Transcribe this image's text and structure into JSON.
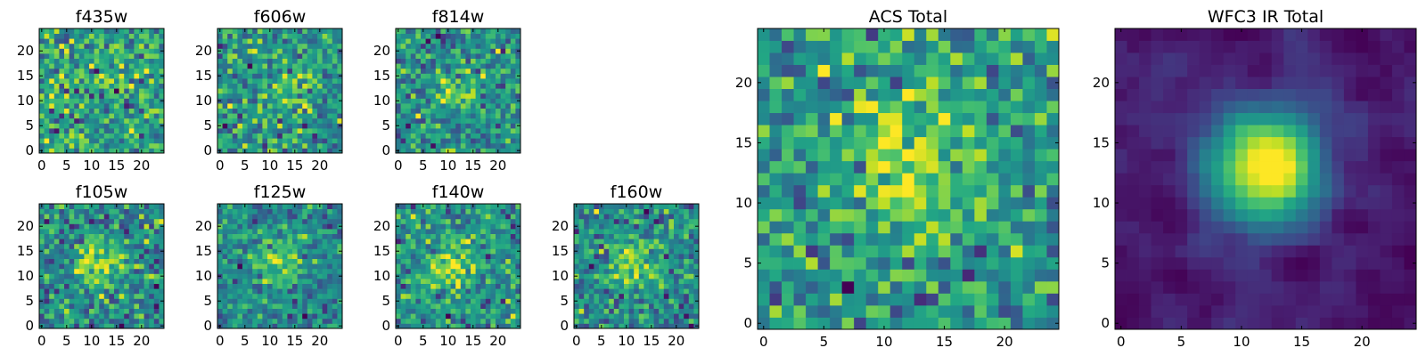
{
  "chart_data": [
    {
      "type": "heatmap",
      "title": "f435w",
      "colormap": "viridis",
      "grid": false,
      "rows": 25,
      "cols": 25,
      "xlim": [
        -0.5,
        24.5
      ],
      "ylim": [
        -0.5,
        24.5
      ],
      "xticks": [
        0,
        5,
        10,
        15,
        20
      ],
      "yticks": [
        0,
        5,
        10,
        15,
        20
      ],
      "peak": [
        10,
        10
      ],
      "signal": 0.15,
      "noise": 1.0
    },
    {
      "type": "heatmap",
      "title": "f606w",
      "colormap": "viridis",
      "grid": false,
      "rows": 25,
      "cols": 25,
      "xlim": [
        -0.5,
        24.5
      ],
      "ylim": [
        -0.5,
        24.5
      ],
      "xticks": [
        0,
        5,
        10,
        15,
        20
      ],
      "yticks": [
        0,
        5,
        10,
        15,
        20
      ],
      "peak": [
        13,
        13
      ],
      "signal": 0.35,
      "noise": 1.0
    },
    {
      "type": "heatmap",
      "title": "f814w",
      "colormap": "viridis",
      "grid": false,
      "rows": 25,
      "cols": 25,
      "xlim": [
        -0.5,
        24.5
      ],
      "ylim": [
        -0.5,
        24.5
      ],
      "xticks": [
        0,
        5,
        10,
        15,
        20
      ],
      "yticks": [
        0,
        5,
        10,
        15,
        20
      ],
      "peak": [
        12,
        12
      ],
      "signal": 0.6,
      "noise": 1.0
    },
    {
      "type": "heatmap",
      "title": "f105w",
      "colormap": "viridis",
      "grid": false,
      "rows": 25,
      "cols": 25,
      "xlim": [
        -0.5,
        24.5
      ],
      "ylim": [
        -0.5,
        24.5
      ],
      "xticks": [
        0,
        5,
        10,
        15,
        20
      ],
      "yticks": [
        0,
        5,
        10,
        15,
        20
      ],
      "peak": [
        12,
        13
      ],
      "signal": 1.0,
      "noise": 1.0
    },
    {
      "type": "heatmap",
      "title": "f125w",
      "colormap": "viridis",
      "grid": false,
      "rows": 25,
      "cols": 25,
      "xlim": [
        -0.5,
        24.5
      ],
      "ylim": [
        -0.5,
        24.5
      ],
      "xticks": [
        0,
        5,
        10,
        15,
        20
      ],
      "yticks": [
        0,
        5,
        10,
        15,
        20
      ],
      "peak": [
        12,
        13
      ],
      "signal": 1.1,
      "noise": 1.0
    },
    {
      "type": "heatmap",
      "title": "f140w",
      "colormap": "viridis",
      "grid": false,
      "rows": 25,
      "cols": 25,
      "xlim": [
        -0.5,
        24.5
      ],
      "ylim": [
        -0.5,
        24.5
      ],
      "xticks": [
        0,
        5,
        10,
        15,
        20
      ],
      "yticks": [
        0,
        5,
        10,
        15,
        20
      ],
      "peak": [
        11,
        12
      ],
      "signal": 1.1,
      "noise": 1.0
    },
    {
      "type": "heatmap",
      "title": "f160w",
      "colormap": "viridis",
      "grid": false,
      "rows": 25,
      "cols": 25,
      "xlim": [
        -0.5,
        24.5
      ],
      "ylim": [
        -0.5,
        24.5
      ],
      "xticks": [
        0,
        5,
        10,
        15,
        20
      ],
      "yticks": [
        0,
        5,
        10,
        15,
        20
      ],
      "peak": [
        11,
        13
      ],
      "signal": 1.2,
      "noise": 1.0
    },
    {
      "type": "heatmap",
      "title": "ACS Total",
      "colormap": "viridis",
      "grid": false,
      "rows": 25,
      "cols": 25,
      "xlim": [
        -0.5,
        24.5
      ],
      "ylim": [
        -0.5,
        24.5
      ],
      "xticks": [
        0,
        5,
        10,
        15,
        20
      ],
      "yticks": [
        0,
        5,
        10,
        15,
        20
      ],
      "peak": [
        12,
        13
      ],
      "signal": 0.9,
      "noise": 0.9
    },
    {
      "type": "heatmap",
      "title": "WFC3 IR Total",
      "colormap": "viridis",
      "grid": false,
      "rows": 25,
      "cols": 25,
      "xlim": [
        -0.5,
        24.5
      ],
      "ylim": [
        -0.5,
        24.5
      ],
      "xticks": [
        0,
        5,
        10,
        15,
        20
      ],
      "yticks": [
        0,
        5,
        10,
        15,
        20
      ],
      "peak": [
        12,
        13
      ],
      "signal": 3.2,
      "noise": 0.45
    }
  ]
}
